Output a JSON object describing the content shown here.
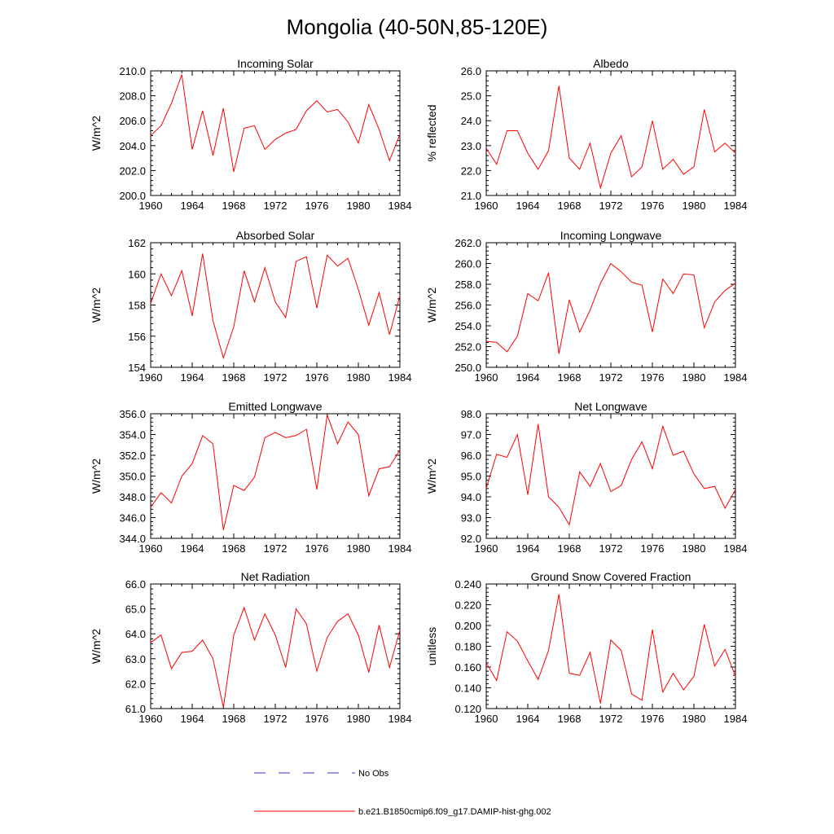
{
  "figure": {
    "title": "Mongolia (40-50N,85-120E)"
  },
  "colors": {
    "series": "#ff0000",
    "obs": "#3333cc",
    "axis": "#000000"
  },
  "legend": {
    "placement": "bottom-center",
    "items": [
      {
        "label": "No Obs",
        "style": "dashed",
        "color": "#3333cc"
      },
      {
        "label": "b.e21.B1850cmip6.f09_g17.DAMIP-hist-ghg.002",
        "style": "solid",
        "color": "#ff0000"
      }
    ]
  },
  "chart_data": [
    {
      "type": "line",
      "title": "Incoming Solar",
      "xlabel": "",
      "ylabel": "W/m^2",
      "x": [
        1960,
        1961,
        1962,
        1963,
        1964,
        1965,
        1966,
        1967,
        1968,
        1969,
        1970,
        1971,
        1972,
        1973,
        1974,
        1975,
        1976,
        1977,
        1978,
        1979,
        1980,
        1981,
        1982,
        1983,
        1984
      ],
      "xlim": [
        1960,
        1984
      ],
      "xticks": [
        "1960",
        "1964",
        "1968",
        "1972",
        "1976",
        "1980",
        "1984"
      ],
      "ylim": [
        200,
        210
      ],
      "yticks": [
        "200.0",
        "202.0",
        "204.0",
        "206.0",
        "208.0",
        "210.0"
      ],
      "series": [
        {
          "name": "b.e21.B1850cmip6.f09_g17.DAMIP-hist-ghg.002",
          "values": [
            204.8,
            205.6,
            207.4,
            209.7,
            203.7,
            206.8,
            203.2,
            207.0,
            201.9,
            205.4,
            205.6,
            203.7,
            204.5,
            205.0,
            205.3,
            206.8,
            207.6,
            206.7,
            206.9,
            205.9,
            204.2,
            207.3,
            205.3,
            202.8,
            204.9
          ]
        }
      ],
      "grid": false
    },
    {
      "type": "line",
      "title": "Albedo",
      "xlabel": "",
      "ylabel": "% reflected",
      "x": [
        1960,
        1961,
        1962,
        1963,
        1964,
        1965,
        1966,
        1967,
        1968,
        1969,
        1970,
        1971,
        1972,
        1973,
        1974,
        1975,
        1976,
        1977,
        1978,
        1979,
        1980,
        1981,
        1982,
        1983,
        1984
      ],
      "xlim": [
        1960,
        1984
      ],
      "xticks": [
        "1960",
        "1964",
        "1968",
        "1972",
        "1976",
        "1980",
        "1984"
      ],
      "ylim": [
        21,
        26
      ],
      "yticks": [
        "21.0",
        "22.0",
        "23.0",
        "24.0",
        "25.0",
        "26.0"
      ],
      "series": [
        {
          "name": "b.e21.B1850cmip6.f09_g17.DAMIP-hist-ghg.002",
          "values": [
            22.9,
            22.25,
            23.6,
            23.6,
            22.7,
            22.05,
            22.8,
            25.4,
            22.5,
            22.05,
            23.1,
            21.3,
            22.7,
            23.4,
            21.75,
            22.15,
            24.0,
            22.05,
            22.45,
            21.85,
            22.15,
            24.45,
            22.75,
            23.1,
            22.7
          ]
        }
      ],
      "grid": false
    },
    {
      "type": "line",
      "title": "Absorbed Solar",
      "xlabel": "",
      "ylabel": "W/m^2",
      "x": [
        1960,
        1961,
        1962,
        1963,
        1964,
        1965,
        1966,
        1967,
        1968,
        1969,
        1970,
        1971,
        1972,
        1973,
        1974,
        1975,
        1976,
        1977,
        1978,
        1979,
        1980,
        1981,
        1982,
        1983,
        1984
      ],
      "xlim": [
        1960,
        1984
      ],
      "xticks": [
        "1960",
        "1964",
        "1968",
        "1972",
        "1976",
        "1980",
        "1984"
      ],
      "ylim": [
        154,
        162
      ],
      "yticks": [
        "154",
        "156",
        "158",
        "160",
        "162"
      ],
      "series": [
        {
          "name": "b.e21.B1850cmip6.f09_g17.DAMIP-hist-ghg.002",
          "values": [
            158.1,
            160.0,
            158.6,
            160.2,
            157.3,
            161.3,
            157.0,
            154.6,
            156.6,
            160.2,
            158.2,
            160.4,
            158.2,
            157.2,
            160.8,
            161.1,
            157.8,
            161.2,
            160.5,
            161.0,
            159.0,
            156.7,
            158.8,
            156.1,
            158.6
          ]
        }
      ],
      "grid": false
    },
    {
      "type": "line",
      "title": "Incoming Longwave",
      "xlabel": "",
      "ylabel": "W/m^2",
      "x": [
        1960,
        1961,
        1962,
        1963,
        1964,
        1965,
        1966,
        1967,
        1968,
        1969,
        1970,
        1971,
        1972,
        1973,
        1974,
        1975,
        1976,
        1977,
        1978,
        1979,
        1980,
        1981,
        1982,
        1983,
        1984
      ],
      "xlim": [
        1960,
        1984
      ],
      "xticks": [
        "1960",
        "1964",
        "1968",
        "1972",
        "1976",
        "1980",
        "1984"
      ],
      "ylim": [
        250,
        262
      ],
      "yticks": [
        "250.0",
        "252.0",
        "254.0",
        "256.0",
        "258.0",
        "260.0",
        "262.0"
      ],
      "series": [
        {
          "name": "b.e21.B1850cmip6.f09_g17.DAMIP-hist-ghg.002",
          "values": [
            252.5,
            252.4,
            251.5,
            253.0,
            257.1,
            256.4,
            259.1,
            251.3,
            256.5,
            253.4,
            255.5,
            258.1,
            260.0,
            259.2,
            258.2,
            257.9,
            253.4,
            258.5,
            257.1,
            259.0,
            258.9,
            253.8,
            256.3,
            257.4,
            258.1
          ]
        }
      ],
      "grid": false
    },
    {
      "type": "line",
      "title": "Emitted Longwave",
      "xlabel": "",
      "ylabel": "W/m^2",
      "x": [
        1960,
        1961,
        1962,
        1963,
        1964,
        1965,
        1966,
        1967,
        1968,
        1969,
        1970,
        1971,
        1972,
        1973,
        1974,
        1975,
        1976,
        1977,
        1978,
        1979,
        1980,
        1981,
        1982,
        1983,
        1984
      ],
      "xlim": [
        1960,
        1984
      ],
      "xticks": [
        "1960",
        "1964",
        "1968",
        "1972",
        "1976",
        "1980",
        "1984"
      ],
      "ylim": [
        344,
        356
      ],
      "yticks": [
        "344.0",
        "346.0",
        "348.0",
        "350.0",
        "352.0",
        "354.0",
        "356.0"
      ],
      "series": [
        {
          "name": "b.e21.B1850cmip6.f09_g17.DAMIP-hist-ghg.002",
          "values": [
            347.0,
            348.4,
            347.4,
            350.0,
            351.2,
            353.9,
            353.1,
            344.8,
            349.1,
            348.6,
            349.9,
            353.7,
            354.2,
            353.7,
            353.9,
            354.5,
            348.7,
            355.9,
            353.1,
            355.2,
            354.0,
            348.1,
            350.7,
            350.9,
            352.5
          ]
        }
      ],
      "grid": false
    },
    {
      "type": "line",
      "title": "Net Longwave",
      "xlabel": "",
      "ylabel": "W/m^2",
      "x": [
        1960,
        1961,
        1962,
        1963,
        1964,
        1965,
        1966,
        1967,
        1968,
        1969,
        1970,
        1971,
        1972,
        1973,
        1974,
        1975,
        1976,
        1977,
        1978,
        1979,
        1980,
        1981,
        1982,
        1983,
        1984
      ],
      "xlim": [
        1960,
        1984
      ],
      "xticks": [
        "1960",
        "1964",
        "1968",
        "1972",
        "1976",
        "1980",
        "1984"
      ],
      "ylim": [
        92,
        98
      ],
      "yticks": [
        "92.0",
        "93.0",
        "94.0",
        "95.0",
        "96.0",
        "97.0",
        "98.0"
      ],
      "series": [
        {
          "name": "b.e21.B1850cmip6.f09_g17.DAMIP-hist-ghg.002",
          "values": [
            94.4,
            96.05,
            95.9,
            97.0,
            94.1,
            97.5,
            94.0,
            93.5,
            92.65,
            95.2,
            94.5,
            95.6,
            94.25,
            94.55,
            95.8,
            96.65,
            95.35,
            97.4,
            96.0,
            96.2,
            95.1,
            94.4,
            94.5,
            93.45,
            94.35
          ]
        }
      ],
      "grid": false
    },
    {
      "type": "line",
      "title": "Net Radiation",
      "xlabel": "",
      "ylabel": "W/m^2",
      "x": [
        1960,
        1961,
        1962,
        1963,
        1964,
        1965,
        1966,
        1967,
        1968,
        1969,
        1970,
        1971,
        1972,
        1973,
        1974,
        1975,
        1976,
        1977,
        1978,
        1979,
        1980,
        1981,
        1982,
        1983,
        1984
      ],
      "xlim": [
        1960,
        1984
      ],
      "xticks": [
        "1960",
        "1964",
        "1968",
        "1972",
        "1976",
        "1980",
        "1984"
      ],
      "ylim": [
        61,
        66
      ],
      "yticks": [
        "61.0",
        "62.0",
        "63.0",
        "64.0",
        "65.0",
        "66.0"
      ],
      "series": [
        {
          "name": "b.e21.B1850cmip6.f09_g17.DAMIP-hist-ghg.002",
          "values": [
            63.65,
            63.95,
            62.6,
            63.25,
            63.3,
            63.75,
            63.0,
            61.05,
            63.95,
            65.05,
            63.75,
            64.8,
            63.95,
            62.65,
            65.0,
            64.4,
            62.5,
            63.85,
            64.5,
            64.8,
            63.95,
            62.45,
            64.35,
            62.65,
            64.15
          ]
        }
      ],
      "grid": false
    },
    {
      "type": "line",
      "title": "Ground Snow Covered Fraction",
      "xlabel": "",
      "ylabel": "unitless",
      "x": [
        1960,
        1961,
        1962,
        1963,
        1964,
        1965,
        1966,
        1967,
        1968,
        1969,
        1970,
        1971,
        1972,
        1973,
        1974,
        1975,
        1976,
        1977,
        1978,
        1979,
        1980,
        1981,
        1982,
        1983,
        1984
      ],
      "xlim": [
        1960,
        1984
      ],
      "xticks": [
        "1960",
        "1964",
        "1968",
        "1972",
        "1976",
        "1980",
        "1984"
      ],
      "ylim": [
        0.12,
        0.24
      ],
      "yticks": [
        "0.120",
        "0.140",
        "0.160",
        "0.180",
        "0.200",
        "0.220",
        "0.240"
      ],
      "series": [
        {
          "name": "b.e21.B1850cmip6.f09_g17.DAMIP-hist-ghg.002",
          "values": [
            0.164,
            0.147,
            0.194,
            0.185,
            0.166,
            0.148,
            0.176,
            0.23,
            0.154,
            0.152,
            0.174,
            0.125,
            0.186,
            0.176,
            0.134,
            0.128,
            0.196,
            0.136,
            0.154,
            0.138,
            0.151,
            0.201,
            0.161,
            0.177,
            0.151
          ]
        }
      ],
      "grid": false
    }
  ]
}
